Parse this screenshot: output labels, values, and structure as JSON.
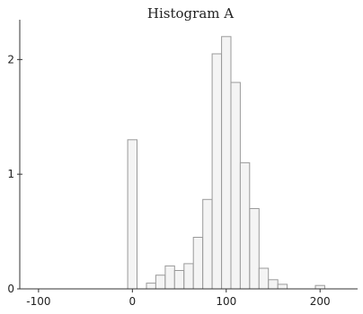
{
  "chart_data": {
    "type": "bar",
    "title": "Histogram A",
    "xlabel": "",
    "ylabel": "",
    "xlim": [
      -120,
      240
    ],
    "ylim": [
      0,
      2.3
    ],
    "bin_width": 10,
    "x_ticks": [
      -100,
      0,
      100,
      200
    ],
    "x_tick_labels": [
      "-100",
      "0",
      "100",
      "200"
    ],
    "y_ticks": [
      0,
      1,
      2
    ],
    "y_tick_labels": [
      "0",
      "1",
      "2"
    ],
    "bins": [
      {
        "x0": -5,
        "x1": 5,
        "value": 1.3
      },
      {
        "x0": 15,
        "x1": 25,
        "value": 0.05
      },
      {
        "x0": 25,
        "x1": 35,
        "value": 0.12
      },
      {
        "x0": 35,
        "x1": 45,
        "value": 0.2
      },
      {
        "x0": 45,
        "x1": 55,
        "value": 0.16
      },
      {
        "x0": 55,
        "x1": 65,
        "value": 0.22
      },
      {
        "x0": 65,
        "x1": 75,
        "value": 0.45
      },
      {
        "x0": 75,
        "x1": 85,
        "value": 0.78
      },
      {
        "x0": 85,
        "x1": 95,
        "value": 2.05
      },
      {
        "x0": 95,
        "x1": 105,
        "value": 2.2
      },
      {
        "x0": 105,
        "x1": 115,
        "value": 1.8
      },
      {
        "x0": 115,
        "x1": 125,
        "value": 1.1
      },
      {
        "x0": 125,
        "x1": 135,
        "value": 0.7
      },
      {
        "x0": 135,
        "x1": 145,
        "value": 0.18
      },
      {
        "x0": 145,
        "x1": 155,
        "value": 0.08
      },
      {
        "x0": 155,
        "x1": 165,
        "value": 0.04
      },
      {
        "x0": 195,
        "x1": 205,
        "value": 0.03
      }
    ]
  }
}
